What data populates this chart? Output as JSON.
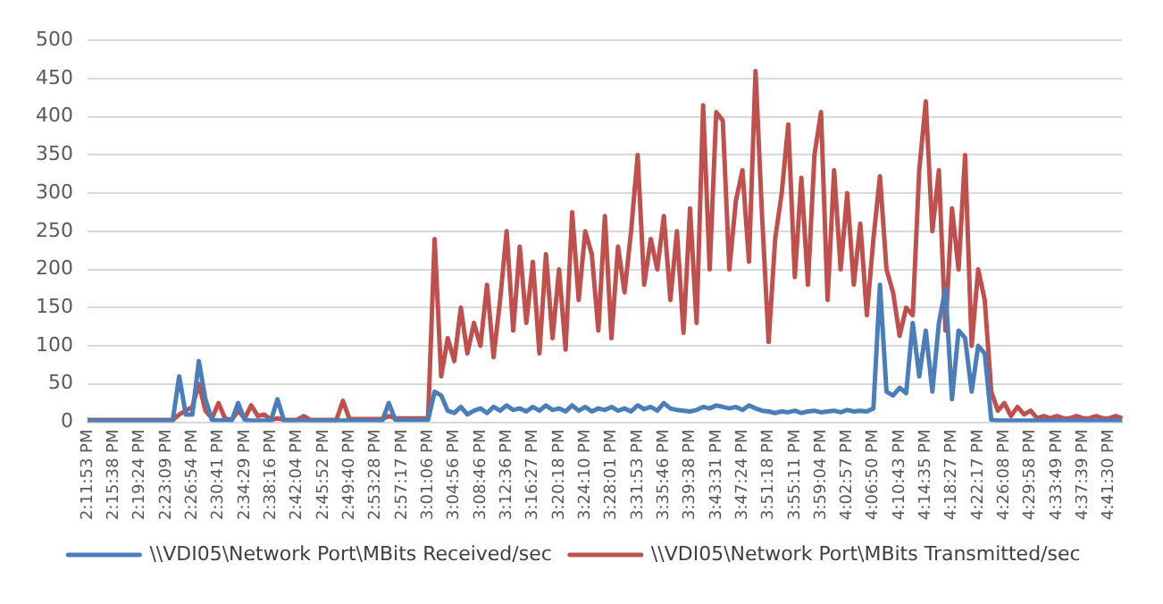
{
  "chart_data": {
    "type": "line",
    "categories": [
      "2:11:53 PM",
      null,
      null,
      null,
      "2:15:38 PM",
      null,
      null,
      null,
      "2:19:24 PM",
      null,
      null,
      null,
      "2:23:09 PM",
      null,
      null,
      null,
      "2:26:54 PM",
      null,
      null,
      null,
      "2:30:41 PM",
      null,
      null,
      null,
      "2:34:29 PM",
      null,
      null,
      null,
      "2:38:16 PM",
      null,
      null,
      null,
      "2:42:04 PM",
      null,
      null,
      null,
      "2:45:52 PM",
      null,
      null,
      null,
      "2:49:40 PM",
      null,
      null,
      null,
      "2:53:28 PM",
      null,
      null,
      null,
      "2:57:17 PM",
      null,
      null,
      null,
      "3:01:06 PM",
      null,
      null,
      null,
      "3:04:56 PM",
      null,
      null,
      null,
      "3:08:46 PM",
      null,
      null,
      null,
      "3:12:36 PM",
      null,
      null,
      null,
      "3:16:27 PM",
      null,
      null,
      null,
      "3:20:18 PM",
      null,
      null,
      null,
      "3:24:10 PM",
      null,
      null,
      null,
      "3:28:01 PM",
      null,
      null,
      null,
      "3:31:53 PM",
      null,
      null,
      null,
      "3:35:46 PM",
      null,
      null,
      null,
      "3:39:38 PM",
      null,
      null,
      null,
      "3:43:31 PM",
      null,
      null,
      null,
      "3:47:24 PM",
      null,
      null,
      null,
      "3:51:18 PM",
      null,
      null,
      null,
      "3:55:11 PM",
      null,
      null,
      null,
      "3:59:04 PM",
      null,
      null,
      null,
      "4:02:57 PM",
      null,
      null,
      null,
      "4:06:50 PM",
      null,
      null,
      null,
      "4:10:43 PM",
      null,
      null,
      null,
      "4:14:35 PM",
      null,
      null,
      null,
      "4:18:27 PM",
      null,
      null,
      null,
      "4:22:17 PM",
      null,
      null,
      null,
      "4:26:08 PM",
      null,
      null,
      null,
      "4:29:58 PM",
      null,
      null,
      null,
      "4:33:49 PM",
      null,
      null,
      null,
      "4:37:39 PM",
      null,
      null,
      null,
      "4:41:30 PM",
      null,
      null
    ],
    "series": [
      {
        "name": "\\\\VDI05\\Network Port\\MBits Received/sec",
        "color": "#4a7ebb",
        "values": [
          2,
          2,
          2,
          2,
          2,
          2,
          2,
          2,
          2,
          2,
          2,
          2,
          2,
          2,
          60,
          10,
          10,
          80,
          30,
          3,
          2,
          3,
          2,
          25,
          3,
          2,
          2,
          2,
          2,
          30,
          2,
          2,
          2,
          2,
          2,
          2,
          2,
          2,
          2,
          2,
          2,
          2,
          2,
          2,
          2,
          2,
          25,
          3,
          3,
          3,
          3,
          3,
          3,
          40,
          35,
          15,
          12,
          20,
          10,
          15,
          18,
          12,
          20,
          15,
          22,
          16,
          18,
          14,
          20,
          15,
          22,
          16,
          18,
          14,
          22,
          15,
          20,
          14,
          18,
          16,
          20,
          15,
          18,
          14,
          22,
          17,
          20,
          15,
          25,
          18,
          16,
          15,
          14,
          16,
          20,
          18,
          22,
          20,
          18,
          20,
          16,
          22,
          18,
          15,
          14,
          12,
          14,
          13,
          15,
          12,
          14,
          15,
          13,
          14,
          15,
          13,
          16,
          14,
          15,
          14,
          18,
          180,
          40,
          35,
          45,
          38,
          130,
          60,
          120,
          40,
          130,
          175,
          30,
          120,
          110,
          40,
          100,
          90,
          3,
          2,
          2,
          2,
          2,
          2,
          2,
          2,
          2,
          2,
          2,
          2,
          2,
          2,
          2,
          2,
          2,
          2,
          2,
          2,
          2
        ]
      },
      {
        "name": "\\\\VDI05\\Network Port\\MBits Transmitted/sec",
        "color": "#c0504d",
        "values": [
          3,
          3,
          3,
          3,
          3,
          3,
          3,
          3,
          3,
          3,
          3,
          3,
          3,
          3,
          10,
          15,
          20,
          50,
          15,
          5,
          25,
          5,
          3,
          15,
          5,
          22,
          8,
          10,
          3,
          5,
          3,
          3,
          3,
          8,
          3,
          3,
          3,
          3,
          3,
          28,
          4,
          4,
          4,
          4,
          4,
          4,
          8,
          5,
          5,
          5,
          5,
          5,
          5,
          240,
          60,
          110,
          80,
          150,
          90,
          130,
          100,
          180,
          85,
          160,
          250,
          120,
          230,
          130,
          210,
          90,
          220,
          110,
          200,
          95,
          275,
          160,
          250,
          220,
          120,
          270,
          110,
          230,
          170,
          250,
          350,
          180,
          240,
          200,
          270,
          160,
          250,
          117,
          280,
          130,
          415,
          200,
          406,
          395,
          200,
          290,
          330,
          210,
          460,
          270,
          105,
          240,
          300,
          390,
          190,
          320,
          180,
          350,
          406,
          160,
          330,
          200,
          300,
          180,
          260,
          140,
          240,
          322,
          200,
          170,
          113,
          150,
          140,
          330,
          420,
          250,
          330,
          120,
          280,
          200,
          350,
          100,
          200,
          160,
          40,
          15,
          25,
          8,
          20,
          10,
          15,
          5,
          8,
          5,
          8,
          5,
          5,
          8,
          5,
          5,
          8,
          5,
          5,
          8,
          5
        ]
      }
    ],
    "ylim": [
      0,
      500
    ],
    "yticks": [
      0,
      50,
      100,
      150,
      200,
      250,
      300,
      350,
      400,
      450,
      500
    ],
    "grid": "y",
    "legend": "bottom",
    "marker": "none",
    "line_style": "solid"
  }
}
